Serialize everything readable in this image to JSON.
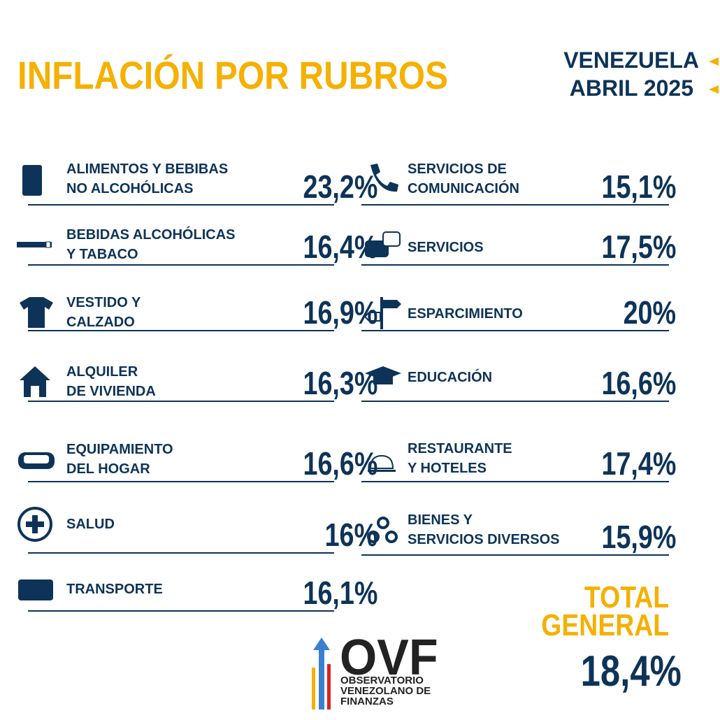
{
  "header": {
    "title": "INFLACIÓN POR  RUBROS",
    "country": "VENEZUELA",
    "period": "ABRIL 2025"
  },
  "items": {
    "left": [
      {
        "label": [
          "ALIMENTOS Y BEBIBAS",
          "NO ALCOHÓLICAS"
        ],
        "value": "23,2%"
      },
      {
        "label": [
          "BEBIDAS ALCOHÓLICAS",
          "Y TABACO"
        ],
        "value": "16,4%"
      },
      {
        "label": [
          "VESTIDO Y",
          "CALZADO"
        ],
        "value": "16,9%"
      },
      {
        "label": [
          "ALQUILER",
          "DE VIVIENDA"
        ],
        "value": "16,3%"
      },
      {
        "label": [
          "EQUIPAMIENTO",
          "DEL HOGAR"
        ],
        "value": "16,6%"
      },
      {
        "label": [
          "SALUD"
        ],
        "value": "16%"
      },
      {
        "label": [
          "TRANSPORTE"
        ],
        "value": "16,1%"
      }
    ],
    "right": [
      {
        "label": [
          "SERVICIOS DE",
          "COMUNICACIÓN"
        ],
        "value": "15,1%"
      },
      {
        "label": [
          "SERVICIOS"
        ],
        "value": "17,5%"
      },
      {
        "label": [
          "ESPARCIMIENTO"
        ],
        "value": "20%"
      },
      {
        "label": [
          "EDUCACIÓN"
        ],
        "value": "16,6%"
      },
      {
        "label": [
          "RESTAURANTE",
          "Y HOTELES"
        ],
        "value": "17,4%"
      },
      {
        "label": [
          "BIENES Y",
          "SERVICIOS DIVERSOS"
        ],
        "value": "15,9%"
      }
    ]
  },
  "total": {
    "label": [
      "TOTAL",
      "GENERAL"
    ],
    "value": "18,4%"
  },
  "logo": {
    "mark": "OVF",
    "lines": [
      "OBSERVATORIO",
      "VENEZOLANO DE",
      "FINANZAS"
    ]
  }
}
